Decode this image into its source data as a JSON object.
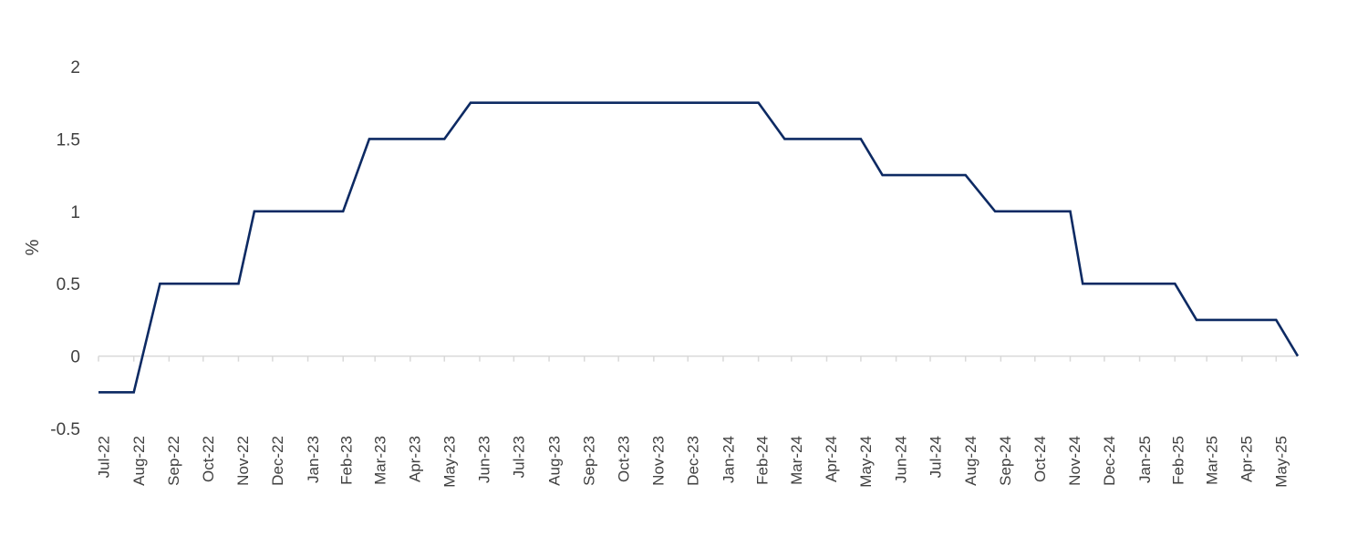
{
  "chart_data": {
    "type": "line",
    "title": "",
    "xlabel": "",
    "ylabel": "%",
    "ylim": [
      -0.5,
      2
    ],
    "yticks": [
      2,
      1.5,
      1,
      0.5,
      0,
      -0.5
    ],
    "grid": false,
    "legend": "none",
    "x_tick_labels": [
      "Jul-22",
      "Aug-22",
      "Sep-22",
      "Oct-22",
      "Nov-22",
      "Dec-22",
      "Jan-23",
      "Feb-23",
      "Mar-23",
      "Apr-23",
      "May-23",
      "Jun-23",
      "Jul-23",
      "Aug-23",
      "Sep-23",
      "Oct-23",
      "Nov-23",
      "Dec-23",
      "Jan-24",
      "Feb-24",
      "Mar-24",
      "Apr-24",
      "May-24",
      "Jun-24",
      "Jul-24",
      "Aug-24",
      "Sep-24",
      "Oct-24",
      "Nov-24",
      "Dec-24",
      "Jan-25",
      "Feb-25",
      "Mar-25",
      "Apr-25",
      "May-25"
    ],
    "series": [
      {
        "color": "#0d2a63",
        "points": [
          {
            "x": "2022-07-01",
            "y": -0.25
          },
          {
            "x": "2022-08-01",
            "y": -0.25
          },
          {
            "x": "2022-08-24",
            "y": 0.5
          },
          {
            "x": "2022-11-01",
            "y": 0.5
          },
          {
            "x": "2022-11-15",
            "y": 1.0
          },
          {
            "x": "2023-02-01",
            "y": 1.0
          },
          {
            "x": "2023-02-24",
            "y": 1.5
          },
          {
            "x": "2023-05-01",
            "y": 1.5
          },
          {
            "x": "2023-05-24",
            "y": 1.75
          },
          {
            "x": "2024-02-01",
            "y": 1.75
          },
          {
            "x": "2024-02-24",
            "y": 1.5
          },
          {
            "x": "2024-05-01",
            "y": 1.5
          },
          {
            "x": "2024-05-20",
            "y": 1.25
          },
          {
            "x": "2024-08-01",
            "y": 1.25
          },
          {
            "x": "2024-08-27",
            "y": 1.0
          },
          {
            "x": "2024-11-01",
            "y": 1.0
          },
          {
            "x": "2024-11-12",
            "y": 0.5
          },
          {
            "x": "2025-02-01",
            "y": 0.5
          },
          {
            "x": "2025-02-20",
            "y": 0.25
          },
          {
            "x": "2025-05-01",
            "y": 0.25
          },
          {
            "x": "2025-05-20",
            "y": 0.0
          }
        ]
      }
    ]
  }
}
